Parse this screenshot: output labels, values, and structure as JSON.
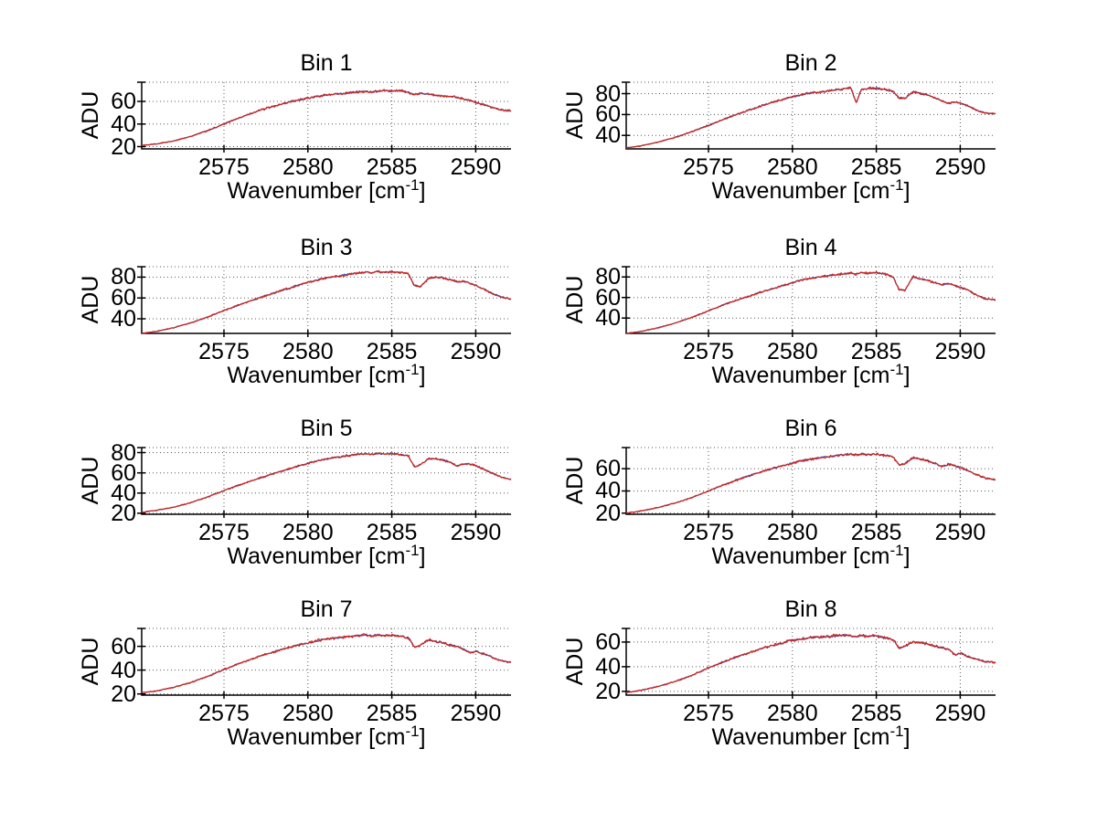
{
  "axes_labels": {
    "ylabel": "ADU",
    "xlabel_pre": "Wavenumber [cm",
    "xlabel_sup": "-1",
    "xlabel_post": "]"
  },
  "style": {
    "background": "#ffffff",
    "grid_color": "#5a5a5a",
    "axis_color": "#000000",
    "trace_red": "#cc2418",
    "trace_blue": "#4850b0"
  },
  "chart_data": {
    "type": "line",
    "grid": true,
    "layout": "4x2 subplots",
    "xlim": [
      2570.1,
      2592.1
    ],
    "xticks": [
      2575,
      2580,
      2585,
      2590
    ],
    "x_knots": [
      2570.1,
      2571,
      2572,
      2573,
      2574,
      2575,
      2576,
      2577,
      2578,
      2579,
      2580,
      2581,
      2582,
      2583,
      2583.5,
      2583.8,
      2584.1,
      2584.5,
      2585,
      2585.5,
      2586,
      2586.35,
      2586.7,
      2587.2,
      2587.6,
      2588,
      2588.5,
      2588.9,
      2589.3,
      2589.7,
      2590,
      2590.5,
      2591,
      2591.5,
      2592.1
    ],
    "series": [
      {
        "name": "spectrum-trace-blue",
        "color": "#4850b0",
        "noise": 1.0
      },
      {
        "name": "spectrum-trace-red",
        "color": "#cc2418",
        "noise": 1.3
      }
    ],
    "subplots": [
      {
        "title": "Bin 1",
        "ylim": [
          18,
          77
        ],
        "yticks": [
          20,
          40,
          60
        ],
        "y_knots": [
          21,
          22.5,
          25,
          29,
          34,
          40,
          46,
          51.5,
          56,
          60,
          63,
          65.5,
          67,
          68.5,
          69,
          68.5,
          69,
          69.5,
          69,
          69.5,
          68,
          66,
          67,
          66.5,
          65.5,
          65,
          64.5,
          63.5,
          62,
          60.5,
          59,
          57,
          54.5,
          52.5,
          51.5
        ]
      },
      {
        "title": "Bin 2",
        "ylim": [
          27,
          91
        ],
        "yticks": [
          40,
          60,
          80
        ],
        "y_knots": [
          28,
          30,
          33.5,
          38,
          43.5,
          49.5,
          56,
          62,
          67.5,
          72.5,
          77,
          80.5,
          82.5,
          84.5,
          85.5,
          71,
          84,
          85,
          85.5,
          84,
          82,
          76,
          75.5,
          82,
          80,
          79,
          76,
          73,
          70.5,
          72,
          71,
          68,
          64,
          61.5,
          60.5
        ]
      },
      {
        "title": "Bin 3",
        "ylim": [
          26,
          90
        ],
        "yticks": [
          40,
          60,
          80
        ],
        "y_knots": [
          26,
          28,
          31.5,
          36,
          41.5,
          48,
          54,
          59.5,
          65,
          70,
          75,
          79,
          81.5,
          84,
          85,
          84,
          85.5,
          84.5,
          85,
          84.5,
          83,
          72,
          70.5,
          79,
          80,
          79.5,
          77.5,
          75.5,
          76,
          74,
          72,
          68.5,
          64,
          61,
          59
        ]
      },
      {
        "title": "Bin 4",
        "ylim": [
          25,
          90
        ],
        "yticks": [
          40,
          60,
          80
        ],
        "y_knots": [
          25,
          27,
          30.5,
          35,
          40.5,
          47,
          53.5,
          59,
          64.5,
          69.5,
          74.5,
          78.5,
          81,
          83,
          84,
          82.5,
          84.5,
          83.5,
          84.5,
          83,
          80,
          68,
          67,
          80.5,
          78,
          77,
          74.5,
          72.5,
          73.5,
          71.5,
          70,
          67,
          62,
          59,
          57.5
        ]
      },
      {
        "title": "Bin 5",
        "ylim": [
          19,
          85
        ],
        "yticks": [
          20,
          40,
          60,
          80
        ],
        "y_knots": [
          21,
          23,
          26,
          30.5,
          36,
          42.5,
          48.5,
          54,
          59.5,
          64.5,
          69.5,
          73.5,
          76,
          78.5,
          79,
          78,
          79.5,
          78.5,
          79,
          78,
          76.5,
          66,
          68,
          74.5,
          74,
          73,
          70.5,
          66.5,
          69,
          68.5,
          67,
          63.5,
          59.5,
          56,
          53.5
        ]
      },
      {
        "title": "Bin 6",
        "ylim": [
          19,
          79
        ],
        "yticks": [
          20,
          40,
          60
        ],
        "y_knots": [
          20,
          22,
          25,
          29,
          34,
          40,
          46,
          51.5,
          56.5,
          61,
          65,
          68.5,
          70.5,
          72.5,
          73,
          72,
          73.5,
          72.5,
          73,
          72,
          70.5,
          63,
          65,
          70,
          69,
          67.5,
          64.5,
          62,
          64,
          62.5,
          61,
          58,
          54.5,
          51.5,
          50
        ]
      },
      {
        "title": "Bin 7",
        "ylim": [
          19,
          75
        ],
        "yticks": [
          20,
          40,
          60
        ],
        "y_knots": [
          21,
          22.5,
          25.5,
          29.5,
          34.5,
          40.5,
          46,
          51,
          55.5,
          59.5,
          63,
          66,
          67.5,
          69,
          69.5,
          68.5,
          69.5,
          69,
          69.5,
          68.5,
          67,
          59,
          61,
          65.5,
          64,
          63,
          61,
          59.5,
          57.5,
          54.5,
          56,
          53.5,
          50.5,
          48,
          46.5
        ]
      },
      {
        "title": "Bin 8",
        "ylim": [
          17,
          71
        ],
        "yticks": [
          20,
          40,
          60
        ],
        "y_knots": [
          19,
          21,
          24,
          28,
          33,
          39,
          44.5,
          49.5,
          54,
          58,
          61.5,
          63.5,
          64.5,
          65.5,
          65,
          64,
          65.5,
          64.5,
          65,
          63.5,
          62,
          55,
          56.5,
          60,
          59.5,
          58.5,
          56.5,
          55.5,
          54,
          49.5,
          51,
          48,
          46,
          44,
          43.5
        ]
      }
    ]
  }
}
